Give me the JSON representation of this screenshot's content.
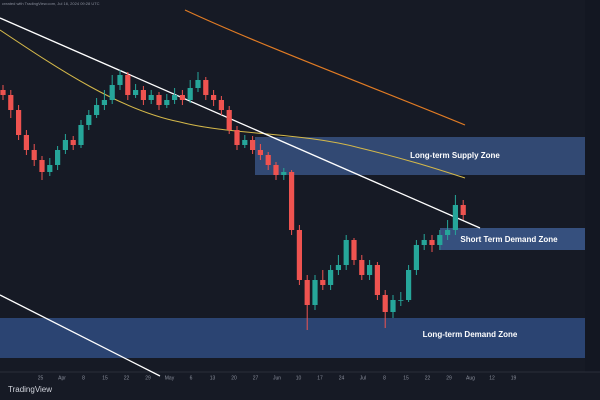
{
  "chart_data": {
    "type": "candlestick",
    "header": "created with TradingView.com, Jul 16, 2024 09:28 UTC",
    "watermark": "TradingView",
    "zones": [
      "Long-term Supply Zone",
      "Short Term Demand Zone",
      "Long-term Demand Zone"
    ],
    "x_labels": [
      "25",
      "Apr",
      "8",
      "15",
      "22",
      "29",
      "May",
      "6",
      "13",
      "20",
      "27",
      "Jun",
      "10",
      "17",
      "24",
      "Jul",
      "8",
      "15",
      "22",
      "29",
      "Aug",
      "12",
      "19"
    ],
    "ylim": [
      0,
      380
    ],
    "up_color": "#26a69a",
    "down_color": "#ef5350",
    "open": [
      290,
      285,
      270,
      245,
      230,
      220,
      208,
      215,
      230,
      240,
      235,
      255,
      265,
      275,
      280,
      295,
      305,
      285,
      290,
      280,
      285,
      275,
      280,
      285,
      280,
      292,
      300,
      285,
      280,
      270,
      250,
      235,
      240,
      230,
      225,
      215,
      205,
      208,
      150,
      100,
      75,
      100,
      95,
      110,
      115,
      140,
      120,
      105,
      115,
      85,
      68,
      80,
      80,
      110,
      135,
      140,
      135,
      145,
      150,
      175
    ],
    "high": [
      295,
      290,
      275,
      250,
      236,
      224,
      222,
      234,
      246,
      244,
      260,
      270,
      282,
      290,
      305,
      310,
      308,
      296,
      294,
      290,
      288,
      286,
      292,
      290,
      300,
      308,
      303,
      290,
      284,
      274,
      254,
      245,
      244,
      236,
      228,
      218,
      212,
      210,
      155,
      105,
      105,
      110,
      115,
      125,
      145,
      142,
      125,
      120,
      118,
      90,
      85,
      88,
      115,
      140,
      146,
      145,
      150,
      160,
      185,
      180
    ],
    "low": [
      280,
      262,
      240,
      225,
      214,
      200,
      204,
      210,
      226,
      230,
      232,
      250,
      262,
      270,
      276,
      290,
      280,
      282,
      275,
      276,
      270,
      272,
      276,
      275,
      277,
      288,
      280,
      274,
      265,
      246,
      230,
      232,
      226,
      220,
      210,
      200,
      200,
      145,
      95,
      50,
      70,
      90,
      90,
      105,
      110,
      115,
      100,
      100,
      80,
      52,
      62,
      74,
      78,
      105,
      130,
      128,
      130,
      140,
      145,
      160
    ],
    "close": [
      285,
      270,
      245,
      230,
      220,
      208,
      215,
      230,
      240,
      235,
      255,
      265,
      275,
      280,
      295,
      305,
      285,
      290,
      280,
      285,
      275,
      280,
      285,
      280,
      292,
      300,
      285,
      280,
      270,
      250,
      235,
      240,
      230,
      225,
      215,
      205,
      208,
      150,
      100,
      75,
      100,
      95,
      110,
      115,
      140,
      120,
      105,
      115,
      85,
      68,
      80,
      80,
      110,
      135,
      140,
      135,
      145,
      150,
      175,
      165
    ]
  }
}
